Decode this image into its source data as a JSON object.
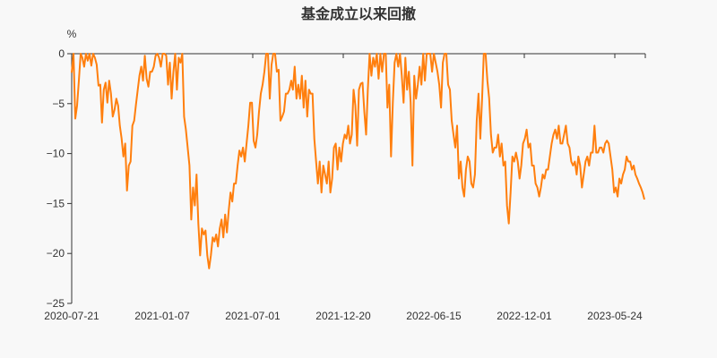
{
  "chart_data": {
    "type": "line",
    "title": "基金成立以来回撤",
    "ylabel": "%",
    "xlabel": "",
    "ylim": [
      -25,
      0
    ],
    "yticks": [
      0,
      -5,
      -10,
      -15,
      -20,
      -25
    ],
    "ytick_labels": [
      "0",
      "−5",
      "−10",
      "−15",
      "−20",
      "−25"
    ],
    "xtick_labels": [
      "2020-07-21",
      "2021-01-07",
      "2021-07-01",
      "2021-12-20",
      "2022-06-15",
      "2022-12-01",
      "2023-05-24"
    ],
    "x_range": [
      "2020-07-21",
      "2023-07-17"
    ],
    "grid": false,
    "legend": "none",
    "color": "#ff7f0e",
    "series": [
      {
        "name": "回撤",
        "values": [
          -1.9,
          0,
          -6.5,
          -5.2,
          -2.7,
          0,
          -0.4,
          -1.3,
          0,
          -0.7,
          0,
          -1.2,
          0,
          -0.4,
          -1.1,
          -3.2,
          -3.1,
          -6.9,
          -3.6,
          -2.9,
          -4.9,
          -2.7,
          -4.0,
          -6.3,
          -5.6,
          -4.5,
          -5.2,
          -7.2,
          -8.5,
          -10.3,
          -9.0,
          -13.7,
          -11.2,
          -10.8,
          -7.2,
          -6.7,
          -5.1,
          -3.6,
          -2.2,
          -1.3,
          -2.7,
          -0.2,
          -2.5,
          -3.3,
          -1.8,
          -1.8,
          -1.3,
          -0.2,
          0,
          -0.4,
          -1.3,
          0,
          0,
          -0.2,
          -3.1,
          -0.9,
          -4.5,
          -1.8,
          0,
          -3.6,
          -0.4,
          -0.9,
          0,
          -6.3,
          -7.6,
          -9.4,
          -11.2,
          -16.6,
          -13.4,
          -15.2,
          -12.1,
          -17.0,
          -20.2,
          -17.5,
          -18.1,
          -17.7,
          -20.2,
          -21.5,
          -20.2,
          -18.4,
          -18.8,
          -18.1,
          -19.3,
          -17.5,
          -16.6,
          -18.4,
          -16.1,
          -17.9,
          -15.7,
          -13.9,
          -14.8,
          -13.0,
          -13.0,
          -11.2,
          -9.7,
          -10.3,
          -9.4,
          -10.8,
          -9.0,
          -7.2,
          -4.9,
          -4.9,
          -8.7,
          -9.4,
          -8.1,
          -5.8,
          -4.0,
          -3.1,
          -1.8,
          0,
          0,
          -4.5,
          -1.1,
          0,
          0,
          -1.8,
          -1.6,
          -6.7,
          -6.3,
          -5.8,
          -4.0,
          -4.0,
          -3.6,
          -2.7,
          -3.6,
          -1.3,
          -4.5,
          -3.1,
          -4.5,
          -2.2,
          -5.4,
          -2.7,
          -6.3,
          -3.6,
          -4.0,
          -4.0,
          -8.5,
          -10.8,
          -13.0,
          -10.8,
          -13.9,
          -11.2,
          -12.1,
          -13.0,
          -10.8,
          -13.9,
          -12.5,
          -9.4,
          -9.0,
          -11.6,
          -9.4,
          -10.8,
          -9.0,
          -8.1,
          -8.5,
          -7.2,
          -9.0,
          -8.1,
          -3.6,
          -5.2,
          -9.2,
          -3.6,
          -3.0,
          -2.9,
          -5.8,
          -8.1,
          -3.6,
          0,
          -2.2,
          -0.4,
          -1.3,
          0,
          -2.5,
          0,
          -1.8,
          0,
          0,
          -5.4,
          -3.1,
          -10.3,
          -4.9,
          -0.9,
          0,
          -1.3,
          0,
          -2.2,
          -4.9,
          -0.4,
          -3.6,
          -1.8,
          -4.9,
          -11.2,
          -2.2,
          -4.5,
          -3.1,
          -1.3,
          -3.1,
          0,
          -2.7,
          0,
          0,
          0,
          -1.8,
          0,
          -0.9,
          -1.8,
          -3.1,
          -5.4,
          -0.9,
          0,
          0,
          -3.1,
          -3.6,
          -6.7,
          -8.1,
          -9.4,
          -7.2,
          -12.5,
          -10.8,
          -13.4,
          -14.3,
          -11.6,
          -10.3,
          -10.8,
          -13.0,
          -13.4,
          -12.1,
          -6.7,
          -4.0,
          -8.5,
          -4.5,
          0,
          0,
          -2.7,
          -4.5,
          -8.1,
          -9.9,
          -9.4,
          -9.4,
          -8.1,
          -10.3,
          -9.0,
          -11.2,
          -10.8,
          -15.2,
          -17.0,
          -13.9,
          -10.3,
          -10.8,
          -9.9,
          -10.8,
          -12.5,
          -11.2,
          -9.0,
          -8.5,
          -7.6,
          -9.4,
          -9.0,
          -11.2,
          -11.2,
          -13.0,
          -13.4,
          -14.3,
          -13.4,
          -12.1,
          -12.5,
          -11.6,
          -11.6,
          -10.3,
          -9.0,
          -8.1,
          -7.6,
          -8.5,
          -7.2,
          -9.0,
          -9.0,
          -8.1,
          -7.2,
          -9.0,
          -9.4,
          -10.8,
          -11.2,
          -10.8,
          -12.1,
          -10.3,
          -11.2,
          -13.4,
          -12.1,
          -10.8,
          -10.3,
          -11.2,
          -9.9,
          -9.9,
          -7.2,
          -9.9,
          -9.9,
          -9.4,
          -9.4,
          -9.9,
          -9.0,
          -8.7,
          -9.0,
          -10.3,
          -11.6,
          -13.9,
          -13.4,
          -14.3,
          -12.5,
          -13.0,
          -12.1,
          -11.6,
          -10.3,
          -10.8,
          -10.8,
          -11.6,
          -11.2,
          -12.1,
          -12.5,
          -13.0,
          -13.4,
          -13.9,
          -14.6
        ]
      }
    ]
  }
}
